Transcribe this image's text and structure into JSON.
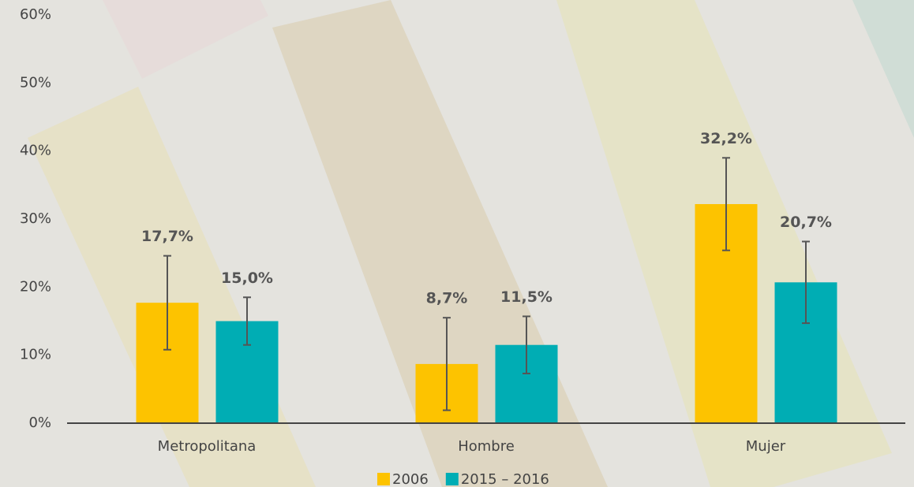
{
  "chart_data": {
    "type": "bar",
    "categories": [
      "Metropolitana",
      "Hombre",
      "Mujer"
    ],
    "series": [
      {
        "name": "2006",
        "color": "#fdc300",
        "values": [
          17.7,
          8.7,
          32.2
        ],
        "value_labels": [
          "17,7%",
          "8,7%",
          "32,2%"
        ],
        "errors": [
          6.9,
          6.8,
          6.8
        ]
      },
      {
        "name": "2015 – 2016",
        "color": "#00adb4",
        "values": [
          15.0,
          11.5,
          20.7
        ],
        "value_labels": [
          "15,0%",
          "11,5%",
          "20,7%"
        ],
        "errors": [
          3.5,
          4.2,
          6.0
        ]
      }
    ],
    "ylim": [
      0,
      60
    ],
    "yticks": [
      {
        "value": 0,
        "label": "0%"
      },
      {
        "value": 10,
        "label": "10%"
      },
      {
        "value": 20,
        "label": "20%"
      },
      {
        "value": 30,
        "label": "30%"
      },
      {
        "value": 40,
        "label": "40%"
      },
      {
        "value": 50,
        "label": "50%"
      },
      {
        "value": 60,
        "label": "60%"
      }
    ],
    "grid": false,
    "legend": "bottom"
  }
}
